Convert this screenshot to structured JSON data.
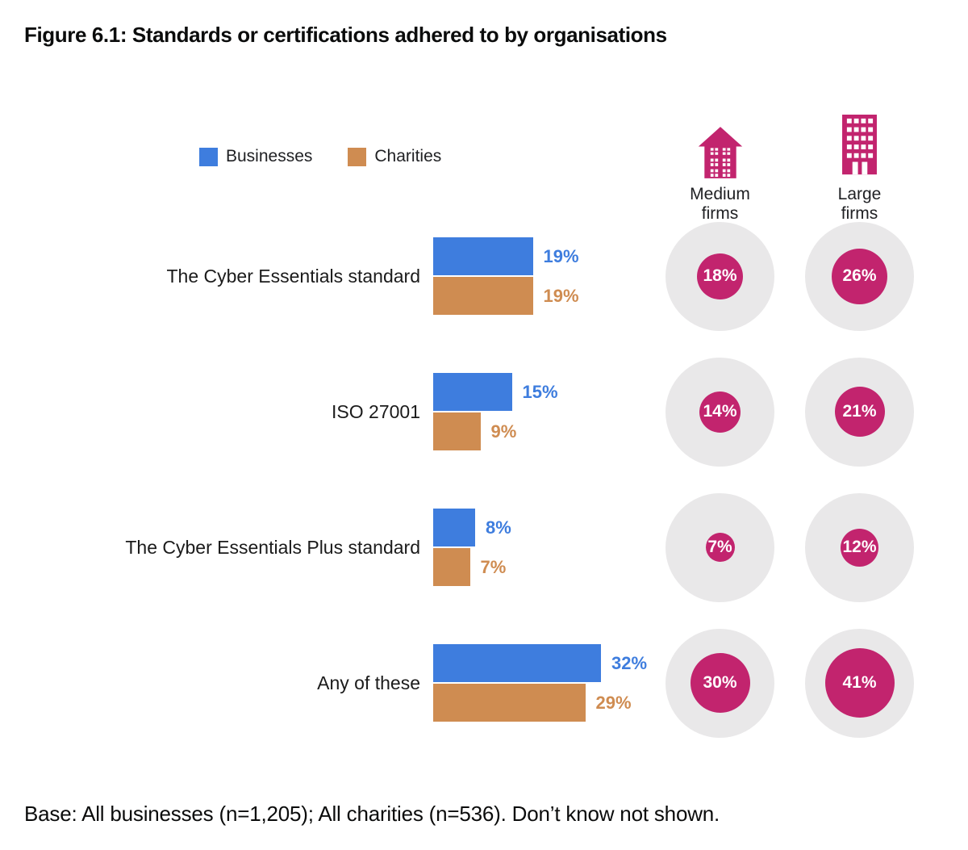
{
  "title": "Figure 6.1: Standards or certifications adhered to by organisations",
  "legend": [
    {
      "label": "Businesses",
      "color": "#3e7dde"
    },
    {
      "label": "Charities",
      "color": "#cf8c51"
    }
  ],
  "columns": [
    {
      "label": "Medium\nfirms",
      "icon": "medium-building-icon"
    },
    {
      "label": "Large\nfirms",
      "icon": "large-building-icon"
    }
  ],
  "footer": "Base: All businesses (n=1,205); All charities (n=536). Don’t know not shown.",
  "colors": {
    "businesses": "#3e7dde",
    "charities": "#cf8c51",
    "firms_magenta": "#c2246e",
    "bubble_background": "#e9e8e9"
  },
  "chart_data": {
    "type": "bar",
    "orientation": "horizontal",
    "unit": "%",
    "title": "Figure 6.1: Standards or certifications adhered to by organisations",
    "categories": [
      "The Cyber Essentials standard",
      "ISO 27001",
      "The Cyber Essentials Plus standard",
      "Any of these"
    ],
    "series": [
      {
        "name": "Businesses",
        "display": "bar",
        "color": "#3e7dde",
        "values": [
          19,
          15,
          8,
          32
        ]
      },
      {
        "name": "Charities",
        "display": "bar",
        "color": "#cf8c51",
        "values": [
          19,
          9,
          7,
          29
        ]
      },
      {
        "name": "Medium firms",
        "display": "bubble",
        "color": "#c2246e",
        "values": [
          18,
          14,
          7,
          30
        ]
      },
      {
        "name": "Large firms",
        "display": "bubble",
        "color": "#c2246e",
        "values": [
          26,
          21,
          12,
          41
        ]
      }
    ],
    "xlim": [
      0,
      35
    ],
    "value_labels": true,
    "grid": false,
    "legend_position": "top-left",
    "notes": "Base: All businesses (n=1,205); All charities (n=536). Don’t know not shown."
  }
}
